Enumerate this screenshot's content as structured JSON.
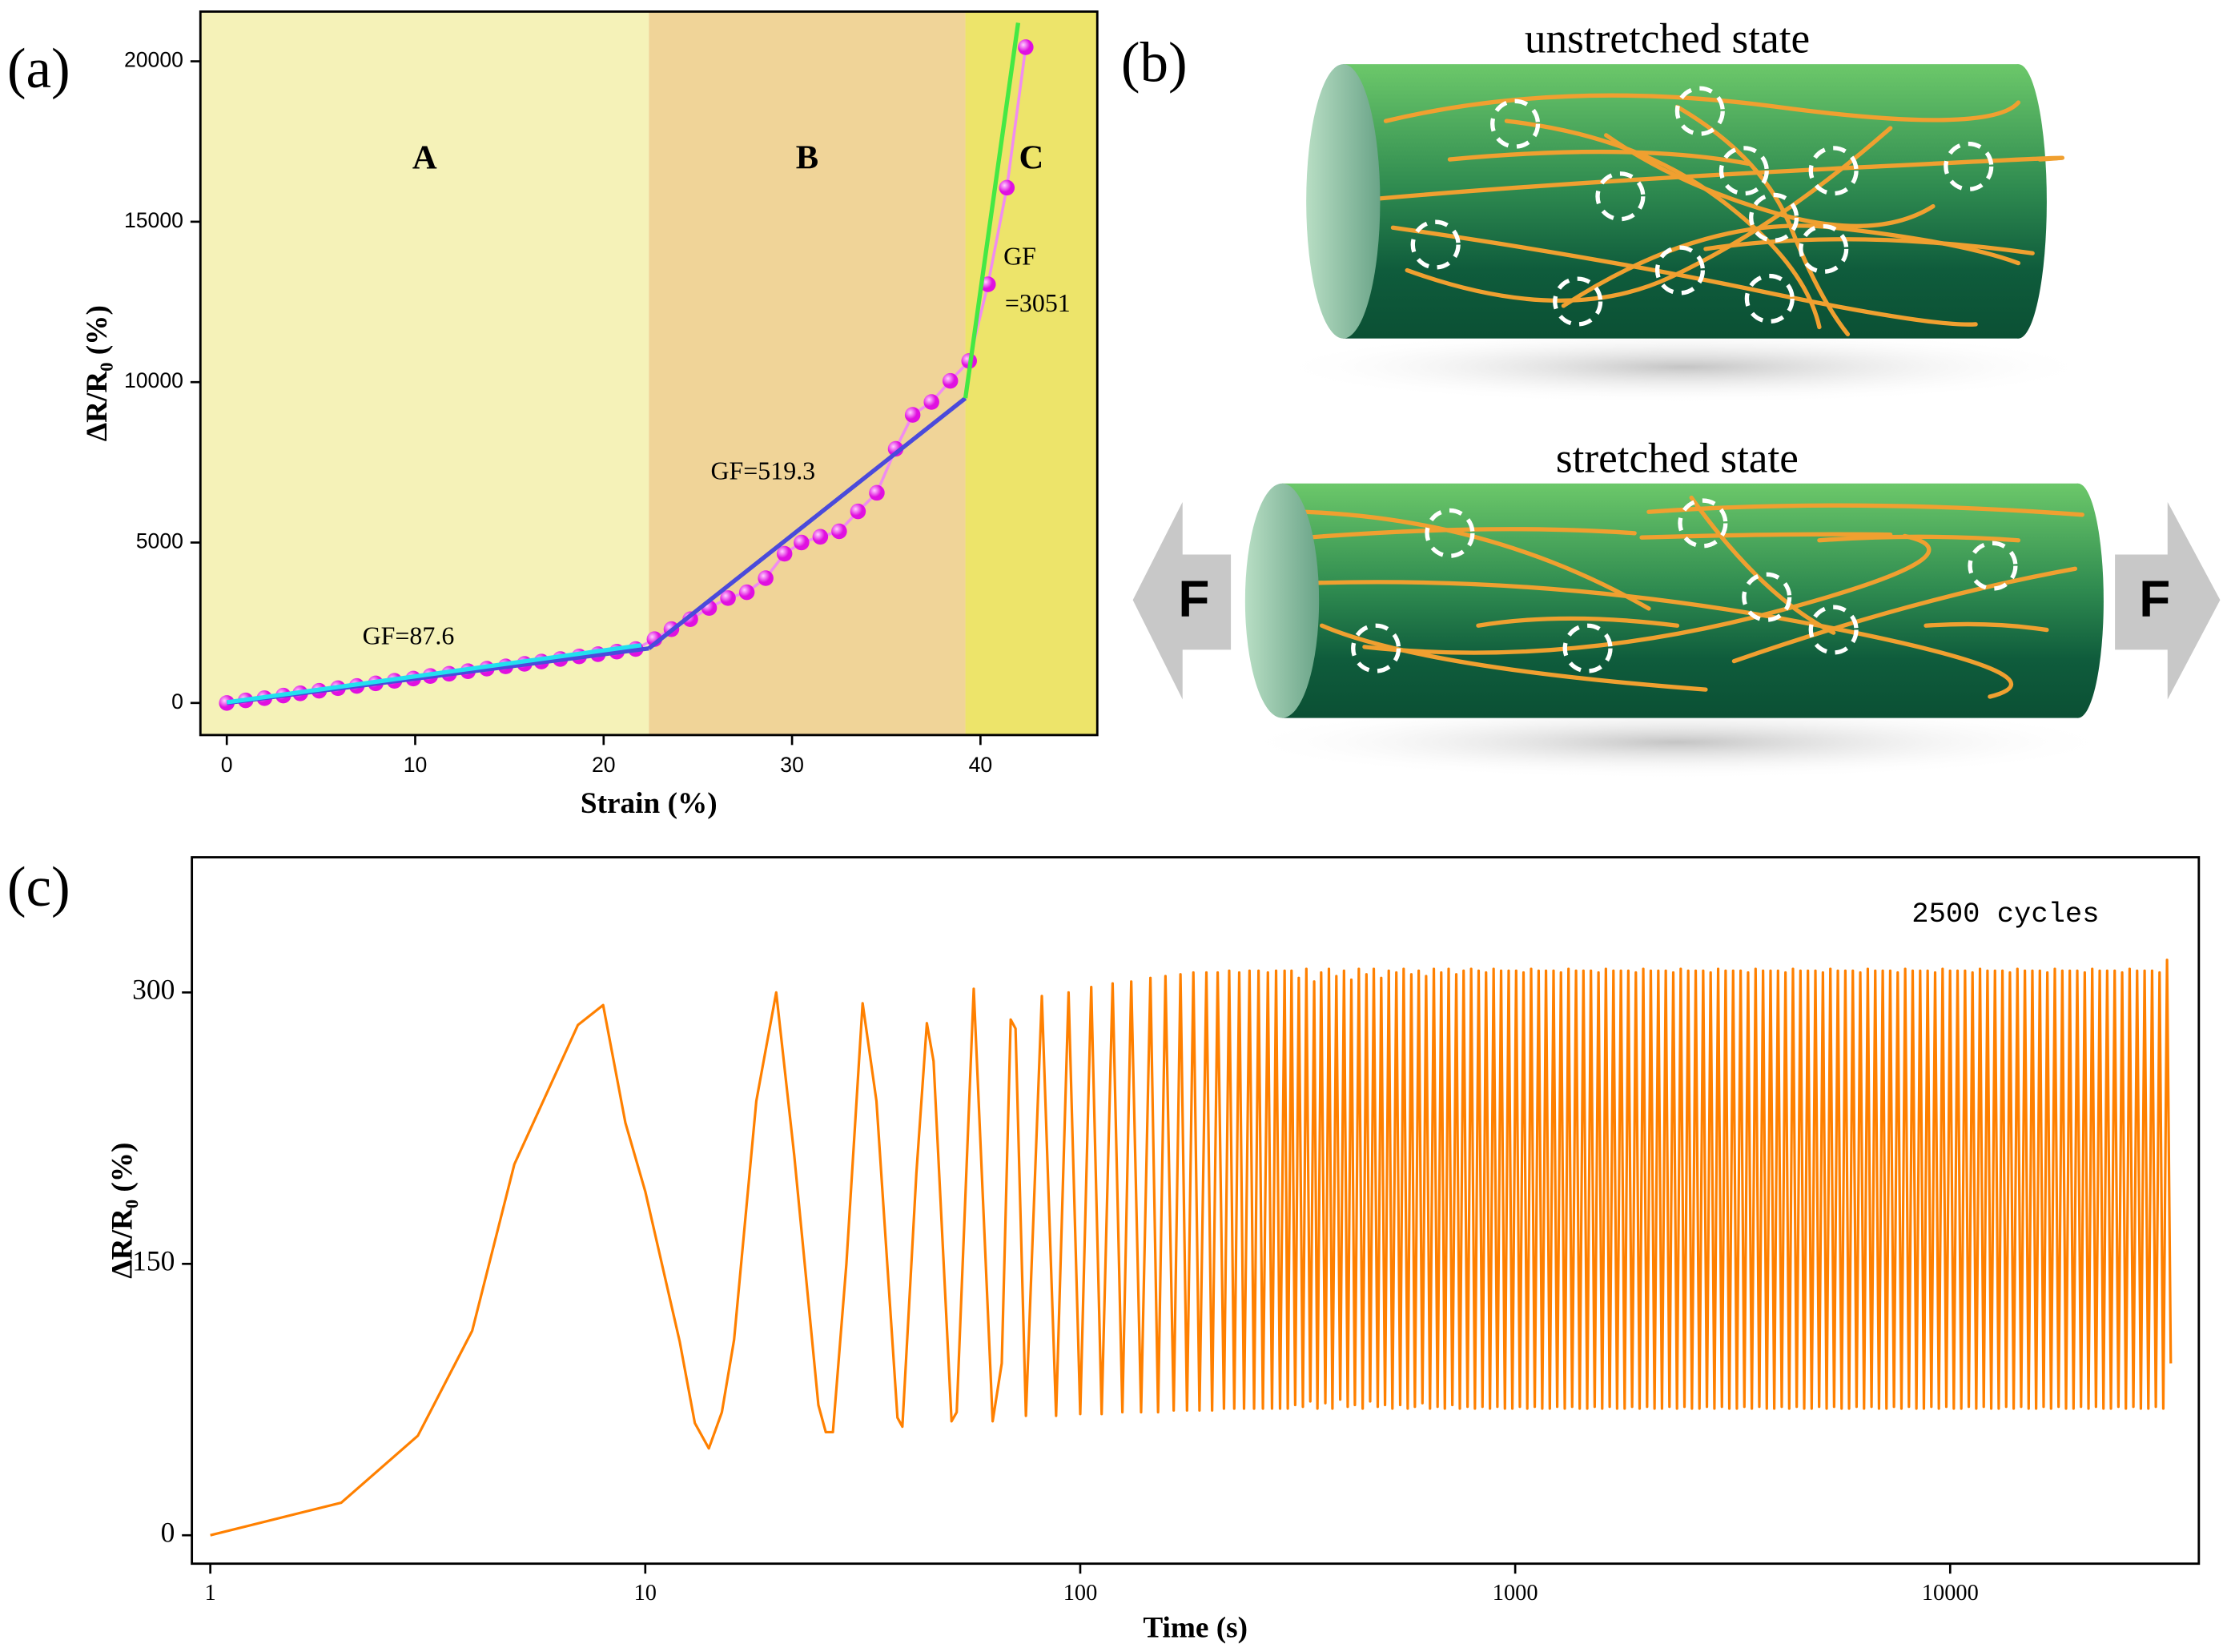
{
  "chart_data": [
    {
      "type": "scatter",
      "panel_label": "(a)",
      "x_label": "Strain (%)",
      "y_label": "ΔR/R₀ (%)",
      "xlim": [
        -1.4,
        46.2
      ],
      "ylim": [
        -1000,
        21550
      ],
      "xticks": [
        0,
        10,
        20,
        30,
        40
      ],
      "yticks": [
        0,
        5000,
        10000,
        15000,
        20000
      ],
      "regions": [
        {
          "label": "A",
          "from": -1.4,
          "to": 22.4,
          "color": "#f5f2b8"
        },
        {
          "label": "B",
          "from": 22.4,
          "to": 39.2,
          "color": "#f0d498"
        },
        {
          "label": "C",
          "from": 39.2,
          "to": 46.2,
          "color": "#ede46a"
        }
      ],
      "series": [
        {
          "color": "#e010e0",
          "line_color": "#f08cf0",
          "x": [
            0,
            1,
            2,
            3,
            3.9,
            4.9,
            5.9,
            6.9,
            7.9,
            8.9,
            9.9,
            10.8,
            11.8,
            12.8,
            13.8,
            14.8,
            15.8,
            16.7,
            17.7,
            18.7,
            19.7,
            20.7,
            21.7,
            22.7,
            23.6,
            24.6,
            25.6,
            26.6,
            27.6,
            28.6,
            29.6,
            30.5,
            31.5,
            32.5,
            33.5,
            34.5,
            35.5,
            36.4,
            37.4,
            38.4,
            39.4,
            40.4,
            41.4,
            42.4
          ],
          "values": [
            0,
            80,
            150,
            230,
            300,
            380,
            460,
            530,
            610,
            690,
            760,
            840,
            910,
            990,
            1070,
            1140,
            1220,
            1290,
            1370,
            1450,
            1520,
            1600,
            1680,
            1990,
            2300,
            2610,
            2960,
            3270,
            3450,
            3890,
            4650,
            5000,
            5180,
            5350,
            5970,
            6550,
            7920,
            8980,
            9380,
            10040,
            10660,
            13050,
            16060,
            20440
          ]
        }
      ],
      "fit_lines": [
        {
          "color": "#4a4adb",
          "x": [
            0,
            22.4
          ],
          "values": [
            0,
            1700
          ]
        },
        {
          "color": "#22e0f0",
          "x": [
            0,
            22
          ],
          "values": [
            20,
            1800
          ]
        },
        {
          "color": "#4a4adb",
          "x": [
            22.4,
            39.2
          ],
          "values": [
            1700,
            9500
          ]
        },
        {
          "color": "#44e844",
          "x": [
            39.2,
            42
          ],
          "values": [
            9500,
            21200
          ]
        }
      ],
      "annotations": [
        "GF=87.6",
        "GF=519.3",
        "GF",
        "=3051"
      ]
    },
    {
      "type": "line",
      "panel_label": "(c)",
      "x_label": "Time (s)",
      "y_label": "ΔR/R₀ (%)",
      "xscale": "log",
      "xlim": [
        0.907,
        37300
      ],
      "ylim": [
        -15.7,
        374.7
      ],
      "xticks": [
        1,
        10,
        100,
        1000,
        10000
      ],
      "yticks": [
        0,
        150,
        300
      ],
      "annotations": [
        "2500 cycles"
      ],
      "series": [
        {
          "color": "#ff8000",
          "x": [
            1,
            2,
            3,
            4,
            5,
            7,
            8,
            9,
            10,
            12,
            13,
            14,
            15,
            16,
            18,
            20,
            22,
            25,
            26,
            27,
            29,
            31.6,
            34,
            38,
            39,
            42,
            44.4,
            46,
            50.6,
            52,
            56.9,
            62.9,
            66,
            69.2,
            71,
            75,
            81.6,
            88,
            94,
            100,
            106,
            112,
            118.7,
            125,
            131,
            138,
            145,
            151,
            157,
            164,
            170,
            176,
            182,
            188,
            195,
            201,
            207,
            214,
            220,
            226,
            232,
            238,
            245,
            251,
            257,
            263,
            270,
            276,
            282,
            288,
            295,
            300,
            306,
            312,
            318,
            325,
            331,
            338,
            345,
            351,
            358,
            366,
            373,
            380,
            388,
            396,
            404,
            412,
            420,
            428,
            437,
            446,
            455,
            464,
            473,
            483,
            492,
            502,
            512,
            522,
            533,
            544,
            554,
            566,
            577,
            588,
            600,
            612,
            624,
            637,
            650,
            663,
            676,
            689,
            703,
            717,
            732,
            746,
            761,
            777,
            792,
            808,
            824,
            841,
            857,
            875,
            892,
            910,
            928,
            947,
            966,
            985,
            1005,
            1025,
            1045,
            1066,
            1088,
            1109,
            1132,
            1154,
            1177,
            1201,
            1225,
            1249,
            1274,
            1300,
            1326,
            1352,
            1380,
            1407,
            1435,
            1464,
            1493,
            1523,
            1554,
            1585,
            1616,
            1649,
            1682,
            1715,
            1750,
            1785,
            1820,
            1857,
            1894,
            1932,
            1970,
            2010,
            2050,
            2091,
            2133,
            2175,
            2219,
            2263,
            2309,
            2355,
            2402,
            2450,
            2499,
            2549,
            2600,
            2652,
            2705,
            2759,
            2814,
            2871,
            2928,
            2987,
            3046,
            3107,
            3170,
            3233,
            3298,
            3364,
            3431,
            3500,
            3570,
            3641,
            3714,
            3788,
            3864,
            3941,
            4020,
            4100,
            4182,
            4266,
            4351,
            4438,
            4527,
            4618,
            4710,
            4804,
            4900,
            4998,
            5098,
            5200,
            5304,
            5410,
            5518,
            5629,
            5741,
            5856,
            5973,
            6093,
            6214,
            6339,
            6465,
            6595,
            6726,
            6861,
            6998,
            7138,
            7281,
            7427,
            7575,
            7727,
            7881,
            8039,
            8200,
            8364,
            8531,
            8701,
            8875,
            9053,
            9234,
            9419,
            9607,
            9799,
            9995,
            10195,
            10399,
            10607,
            10819,
            11036,
            11256,
            11481,
            11711,
            11945,
            12184,
            12428,
            12677,
            12930,
            13189,
            13453,
            13722,
            13996,
            14276,
            14562,
            14853,
            15150,
            15453,
            15762,
            16077,
            16399,
            16727,
            17061,
            17403,
            17751,
            18106,
            18468,
            18837,
            19214,
            19598,
            19990,
            20390,
            20798,
            21214,
            21638,
            22071,
            22512,
            22962,
            23422,
            23890,
            24368,
            24855,
            25352,
            25859,
            26377,
            26904,
            27442,
            27991,
            28551,
            29122,
            29704,
            30298,
            30904,
            31522,
            32153
          ],
          "values": [
            0,
            18,
            55,
            113,
            205,
            282,
            293,
            228,
            190,
            107,
            62,
            48,
            68,
            108,
            240,
            300,
            210,
            72,
            57,
            57,
            150,
            294,
            240,
            65,
            60,
            200,
            283,
            262,
            63,
            68,
            302,
            63,
            95,
            285,
            280,
            66,
            298,
            66,
            300,
            67,
            303,
            67,
            305,
            68,
            306,
            68,
            308,
            68,
            309,
            69,
            310,
            69,
            311,
            69,
            311,
            69,
            311,
            70,
            312,
            70,
            311,
            70,
            312,
            70,
            312,
            70,
            311,
            70,
            312,
            70,
            312,
            70,
            312,
            72,
            308,
            71,
            313,
            74,
            306,
            70,
            311,
            73,
            313,
            70,
            309,
            75,
            312,
            71,
            307,
            72,
            313,
            70,
            310,
            74,
            313,
            71,
            308,
            72,
            312,
            70,
            311,
            72,
            313,
            70,
            310,
            71,
            312,
            73,
            309,
            70,
            313,
            71,
            311,
            70,
            313,
            72,
            310,
            70,
            312,
            71,
            313,
            70,
            312,
            71,
            311,
            70,
            313,
            71,
            312,
            70,
            312,
            70,
            312,
            71,
            311,
            70,
            313,
            71,
            312,
            70,
            312,
            70,
            312,
            71,
            311,
            70,
            313,
            71,
            312,
            70,
            312,
            70,
            312,
            71,
            311,
            70,
            313,
            71,
            312,
            70,
            312,
            70,
            312,
            71,
            311,
            70,
            313,
            71,
            312,
            70,
            312,
            70,
            312,
            71,
            311,
            70,
            313,
            71,
            312,
            70,
            312,
            70,
            312,
            71,
            311,
            70,
            313,
            71,
            312,
            70,
            312,
            70,
            312,
            71,
            311,
            70,
            313,
            71,
            312,
            70,
            312,
            70,
            312,
            71,
            311,
            70,
            313,
            71,
            312,
            70,
            312,
            70,
            312,
            71,
            311,
            70,
            313,
            71,
            312,
            70,
            312,
            70,
            312,
            71,
            311,
            70,
            313,
            71,
            312,
            70,
            312,
            70,
            312,
            71,
            311,
            70,
            313,
            71,
            312,
            70,
            312,
            70,
            312,
            71,
            311,
            70,
            313,
            71,
            312,
            70,
            312,
            70,
            312,
            71,
            311,
            70,
            313,
            71,
            312,
            70,
            312,
            70,
            312,
            71,
            311,
            70,
            313,
            71,
            312,
            70,
            312,
            70,
            312,
            71,
            311,
            70,
            313,
            71,
            312,
            70,
            312,
            70,
            312,
            71,
            311,
            70,
            313,
            71,
            312,
            70,
            312,
            70,
            312,
            71,
            311,
            70,
            313,
            71,
            312,
            70,
            312,
            70,
            312,
            71,
            311,
            70,
            318,
            95
          ]
        }
      ]
    }
  ],
  "diagram": {
    "label": "(b)",
    "top_title": "unstretched state",
    "bottom_title": "stretched state",
    "force_left": "F",
    "force_right": "F"
  }
}
